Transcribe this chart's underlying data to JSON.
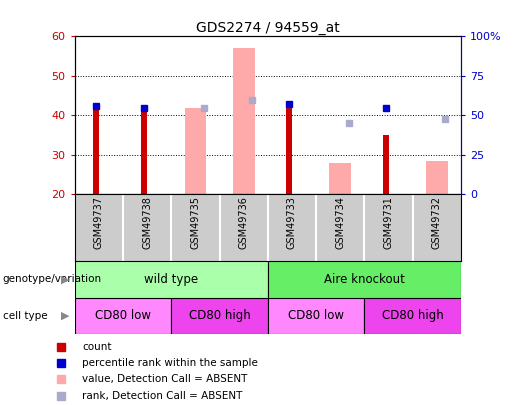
{
  "title": "GDS2274 / 94559_at",
  "samples": [
    "GSM49737",
    "GSM49738",
    "GSM49735",
    "GSM49736",
    "GSM49733",
    "GSM49734",
    "GSM49731",
    "GSM49732"
  ],
  "ylim": [
    20,
    60
  ],
  "y2lim": [
    0,
    100
  ],
  "yticks": [
    20,
    30,
    40,
    50,
    60
  ],
  "y2ticks": [
    0,
    25,
    50,
    75,
    100
  ],
  "y2ticklabels": [
    "0",
    "25",
    "50",
    "75",
    "100%"
  ],
  "count_values": [
    43,
    42,
    null,
    null,
    43,
    null,
    35,
    null
  ],
  "rank_values": [
    42.5,
    42,
    null,
    null,
    43,
    null,
    42,
    null
  ],
  "absent_value_values": [
    null,
    null,
    42,
    57,
    null,
    28,
    null,
    28.5
  ],
  "absent_rank_values": [
    null,
    null,
    42,
    44,
    null,
    38,
    null,
    39
  ],
  "count_color": "#cc0000",
  "rank_color": "#0000cc",
  "absent_value_color": "#ffaaaa",
  "absent_rank_color": "#aaaacc",
  "background_color": "#ffffff",
  "plot_bg_color": "#ffffff",
  "tick_area_color": "#cccccc",
  "ylabel_left_color": "#cc0000",
  "ylabel_right_color": "#0000cc",
  "geno_data": [
    {
      "label": "wild type",
      "start": 0,
      "end": 4,
      "color": "#aaffaa"
    },
    {
      "label": "Aire knockout",
      "start": 4,
      "end": 8,
      "color": "#66ee66"
    }
  ],
  "cell_data": [
    {
      "label": "CD80 low",
      "start": 0,
      "end": 2,
      "color": "#ff88ff"
    },
    {
      "label": "CD80 high",
      "start": 2,
      "end": 4,
      "color": "#ee44ee"
    },
    {
      "label": "CD80 low",
      "start": 4,
      "end": 6,
      "color": "#ff88ff"
    },
    {
      "label": "CD80 high",
      "start": 6,
      "end": 8,
      "color": "#ee44ee"
    }
  ],
  "legend_items": [
    {
      "label": "count",
      "color": "#cc0000"
    },
    {
      "label": "percentile rank within the sample",
      "color": "#0000cc"
    },
    {
      "label": "value, Detection Call = ABSENT",
      "color": "#ffaaaa"
    },
    {
      "label": "rank, Detection Call = ABSENT",
      "color": "#aaaacc"
    }
  ]
}
